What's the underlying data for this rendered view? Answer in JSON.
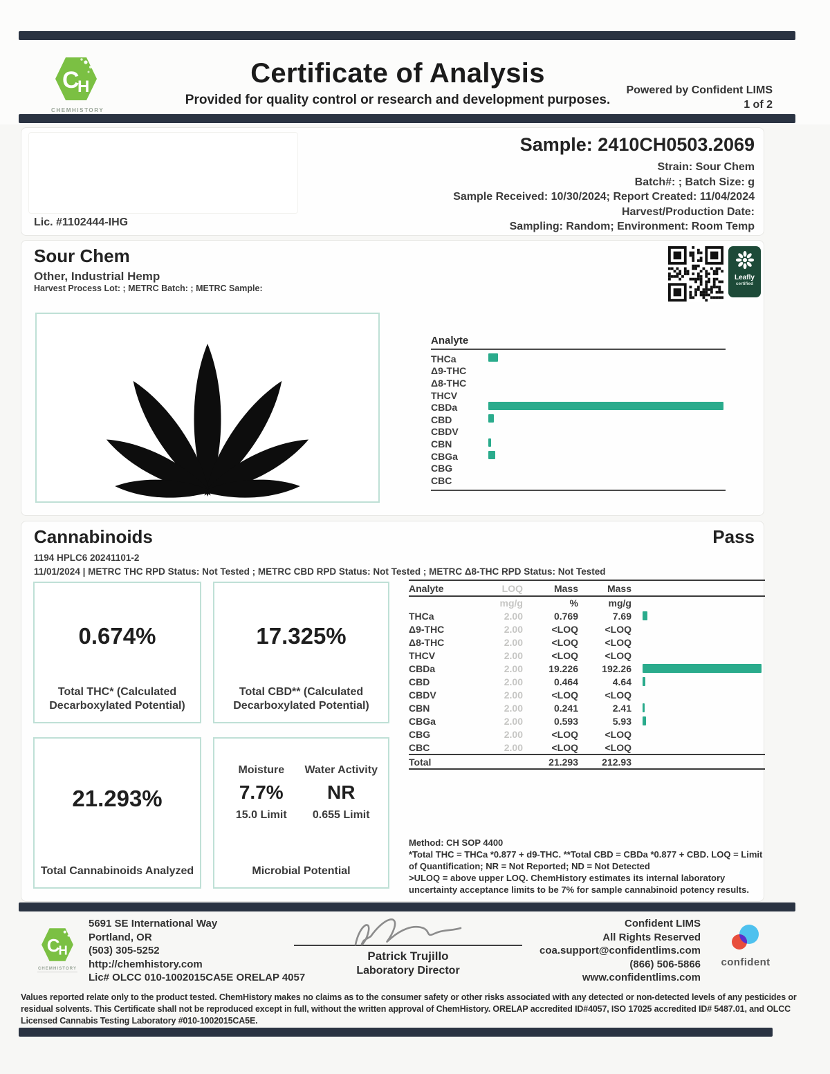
{
  "colors": {
    "accent_teal": "#2aab8c",
    "navy_bar": "#2a3342",
    "box_border_teal": "#bfe0d6",
    "logo_green": "#7bc043",
    "leafly_green": "#1d4a38"
  },
  "header": {
    "title": "Certificate of Analysis",
    "subtitle": "Provided for quality control or research and development purposes.",
    "powered_by": "Powered by Confident LIMS",
    "page_indicator": "1 of 2",
    "brand": {
      "initials_c": "C",
      "initials_h": "H",
      "name": "CHEMHISTORY"
    }
  },
  "sample": {
    "license": "Lic. #1102444-IHG",
    "title": "Sample: 2410CH0503.2069",
    "lines": [
      "Strain: Sour Chem",
      "Batch#: ; Batch Size:  g",
      "Sample Received: 10/30/2024; Report Created: 11/04/2024",
      "Harvest/Production Date:",
      "Sampling: Random; Environment: Room Temp"
    ]
  },
  "product": {
    "name": "Sour Chem",
    "category": "Other, Industrial Hemp",
    "metrc_line": "Harvest Process Lot: ; METRC Batch: ; METRC Sample:",
    "leafly_badge": {
      "line1": "Leafly",
      "line2": "certified"
    }
  },
  "chart_data": {
    "type": "bar",
    "orientation": "horizontal",
    "title": "Analyte",
    "categories": [
      "THCa",
      "Δ9-THC",
      "Δ8-THC",
      "THCV",
      "CBDa",
      "CBD",
      "CBDV",
      "CBN",
      "CBGa",
      "CBG",
      "CBC"
    ],
    "values": [
      7.69,
      0,
      0,
      0,
      192.26,
      4.64,
      0,
      2.41,
      5.93,
      0,
      0
    ],
    "unit": "mg/g",
    "xlim": [
      0,
      192.26
    ],
    "bar_color": "#2aab8c",
    "legend": "none",
    "grid": false
  },
  "cannabinoids": {
    "section_title": "Cannabinoids",
    "status": "Pass",
    "run_id": "1194 HPLC6 20241101-2",
    "status_line": "11/01/2024 | METRC THC RPD Status: Not Tested ; METRC CBD RPD Status: Not Tested ; METRC Δ8-THC RPD Status: Not Tested",
    "summary_boxes": [
      {
        "value": "0.674%",
        "label": "Total THC* (Calculated Decarboxylated Potential)"
      },
      {
        "value": "17.325%",
        "label": "Total CBD** (Calculated Decarboxylated Potential)"
      },
      {
        "value": "21.293%",
        "label": "Total Cannabinoids Analyzed"
      }
    ],
    "microbial_box": {
      "moisture_label": "Moisture",
      "moisture_value": "7.7%",
      "moisture_limit": "15.0 Limit",
      "water_label": "Water Activity",
      "water_value": "NR",
      "water_limit": "0.655 Limit",
      "label": "Microbial Potential"
    },
    "table": {
      "headers": {
        "analyte": "Analyte",
        "loq": "LOQ",
        "mass1": "Mass",
        "mass2": "Mass"
      },
      "units": {
        "loq": "mg/g",
        "mass1": "%",
        "mass2": "mg/g"
      },
      "rows": [
        {
          "analyte": "THCa",
          "loq": "2.00",
          "mass_pct": "0.769",
          "mass_mgg": "7.69",
          "bar": 7.69
        },
        {
          "analyte": "Δ9-THC",
          "loq": "2.00",
          "mass_pct": "<LOQ",
          "mass_mgg": "<LOQ",
          "bar": 0
        },
        {
          "analyte": "Δ8-THC",
          "loq": "2.00",
          "mass_pct": "<LOQ",
          "mass_mgg": "<LOQ",
          "bar": 0
        },
        {
          "analyte": "THCV",
          "loq": "2.00",
          "mass_pct": "<LOQ",
          "mass_mgg": "<LOQ",
          "bar": 0
        },
        {
          "analyte": "CBDa",
          "loq": "2.00",
          "mass_pct": "19.226",
          "mass_mgg": "192.26",
          "bar": 192.26
        },
        {
          "analyte": "CBD",
          "loq": "2.00",
          "mass_pct": "0.464",
          "mass_mgg": "4.64",
          "bar": 4.64
        },
        {
          "analyte": "CBDV",
          "loq": "2.00",
          "mass_pct": "<LOQ",
          "mass_mgg": "<LOQ",
          "bar": 0
        },
        {
          "analyte": "CBN",
          "loq": "2.00",
          "mass_pct": "0.241",
          "mass_mgg": "2.41",
          "bar": 2.41
        },
        {
          "analyte": "CBGa",
          "loq": "2.00",
          "mass_pct": "0.593",
          "mass_mgg": "5.93",
          "bar": 5.93
        },
        {
          "analyte": "CBG",
          "loq": "2.00",
          "mass_pct": "<LOQ",
          "mass_mgg": "<LOQ",
          "bar": 0
        },
        {
          "analyte": "CBC",
          "loq": "2.00",
          "mass_pct": "<LOQ",
          "mass_mgg": "<LOQ",
          "bar": 0
        }
      ],
      "total": {
        "label": "Total",
        "mass_pct": "21.293",
        "mass_mgg": "212.93"
      }
    },
    "method_lines": [
      "Method: CH SOP 4400",
      "*Total THC = THCa *0.877 + d9-THC. **Total CBD = CBDa *0.877 + CBD. LOQ = Limit of Quantification; NR = Not Reported; ND = Not Detected",
      ">ULOQ = above upper LOQ. ChemHistory estimates its internal laboratory uncertainty acceptance limits to be 7% for sample cannabinoid potency results."
    ]
  },
  "footer": {
    "address_lines": [
      "5691 SE International Way",
      "Portland, OR",
      "(503) 305-5252",
      "http://chemhistory.com",
      "Lic# OLCC 010-1002015CA5E ORELAP 4057"
    ],
    "signer_name": "Patrick Trujillo",
    "signer_title": "Laboratory Director",
    "right_lines": [
      "Confident LIMS",
      "All Rights Reserved",
      "coa.support@confidentlims.com",
      "(866) 506-5866",
      "www.confidentlims.com"
    ],
    "confident_wordmark": "confident"
  },
  "disclaimer": "Values reported relate only to the product tested. ChemHistory makes no claims as to the consumer safety or other risks associated with any detected or non-detected levels of any pesticides or residual solvents. This Certificate shall not be reproduced except in full, without the written approval of ChemHistory.  ORELAP accredited ID#4057, ISO 17025 accredited ID# 5487.01, and OLCC Licensed Cannabis Testing Laboratory #010-1002015CA5E."
}
